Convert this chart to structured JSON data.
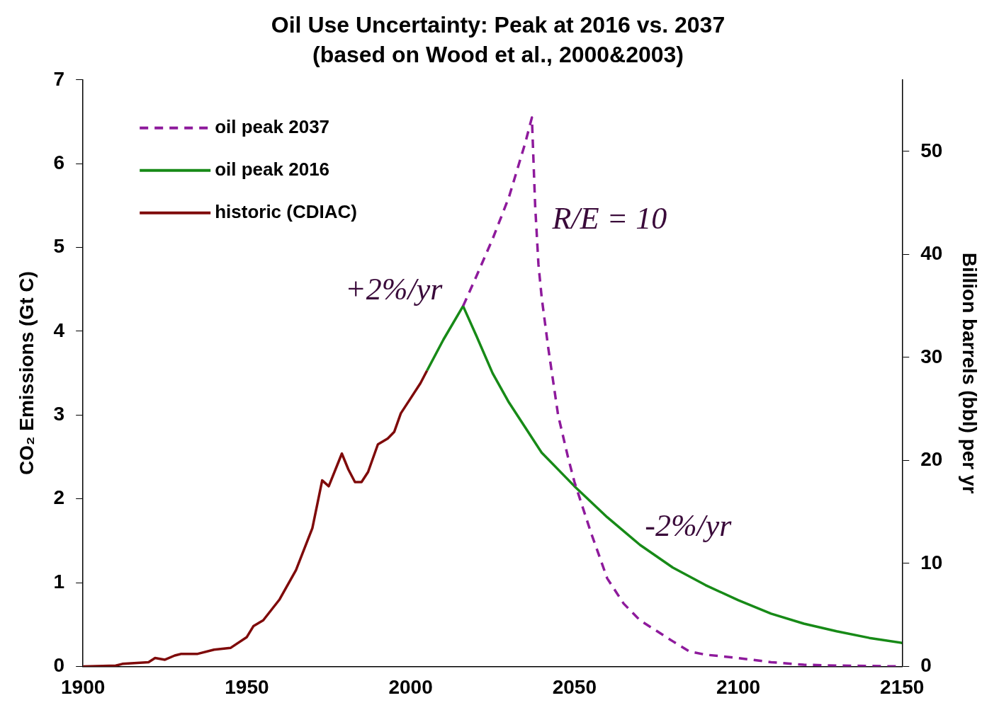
{
  "chart_data": {
    "type": "line",
    "title": "Oil Use Uncertainty: Peak at 2016 vs. 2037",
    "subtitle": "(based on Wood et al., 2000&2003)",
    "ylabel": "CO₂ Emissions (Gt C)",
    "y2label": "Billion barrels (bbl) per yr",
    "xlim": [
      1900,
      2150
    ],
    "xticks": [
      1900,
      1950,
      2000,
      2050,
      2100,
      2150
    ],
    "ylim": [
      0,
      7
    ],
    "yticks": [
      0,
      1,
      2,
      3,
      4,
      5,
      6,
      7
    ],
    "y2lim": [
      0,
      56.95
    ],
    "y2ticks": [
      0,
      10,
      20,
      30,
      40,
      50
    ],
    "grid": false,
    "legend": "top left",
    "marker": "none",
    "series": [
      {
        "name": "oil peak 2037",
        "color": "#8e1a9c",
        "line_style": "dashed",
        "x": [
          2016,
          2020,
          2025,
          2030,
          2035,
          2037,
          2038,
          2039,
          2040,
          2042,
          2045,
          2048,
          2050,
          2055,
          2060,
          2065,
          2070,
          2080,
          2085,
          2090,
          2100,
          2110,
          2120,
          2130,
          2150
        ],
        "values": [
          4.3,
          4.65,
          5.1,
          5.6,
          6.25,
          6.55,
          5.5,
          4.8,
          4.4,
          3.8,
          3.0,
          2.5,
          2.2,
          1.6,
          1.05,
          0.75,
          0.55,
          0.3,
          0.18,
          0.14,
          0.1,
          0.05,
          0.02,
          0.01,
          0
        ]
      },
      {
        "name": "oil peak 2016",
        "color": "#178a17",
        "line_style": "solid",
        "x": [
          2005,
          2010,
          2016,
          2020,
          2025,
          2030,
          2035,
          2040,
          2050,
          2060,
          2070,
          2080,
          2090,
          2100,
          2110,
          2120,
          2130,
          2140,
          2150
        ],
        "values": [
          3.53,
          3.9,
          4.3,
          3.95,
          3.5,
          3.15,
          2.85,
          2.55,
          2.15,
          1.78,
          1.45,
          1.18,
          0.97,
          0.79,
          0.63,
          0.51,
          0.42,
          0.34,
          0.28
        ]
      },
      {
        "name": "historic (CDIAC)",
        "color": "#7f0a0a",
        "line_style": "solid",
        "x": [
          1900,
          1910,
          1912,
          1920,
          1922,
          1925,
          1928,
          1930,
          1935,
          1940,
          1945,
          1950,
          1952,
          1955,
          1960,
          1965,
          1970,
          1973,
          1975,
          1979,
          1981,
          1983,
          1985,
          1987,
          1990,
          1993,
          1995,
          1997,
          2000,
          2003,
          2005
        ],
        "values": [
          0,
          0.01,
          0.03,
          0.05,
          0.1,
          0.08,
          0.13,
          0.15,
          0.15,
          0.2,
          0.22,
          0.35,
          0.48,
          0.55,
          0.8,
          1.15,
          1.65,
          2.22,
          2.15,
          2.54,
          2.35,
          2.2,
          2.2,
          2.32,
          2.65,
          2.72,
          2.8,
          3.02,
          3.2,
          3.38,
          3.53
        ]
      }
    ],
    "annotations": [
      "+2%/yr",
      "R/E = 10",
      "-2%/yr"
    ]
  }
}
